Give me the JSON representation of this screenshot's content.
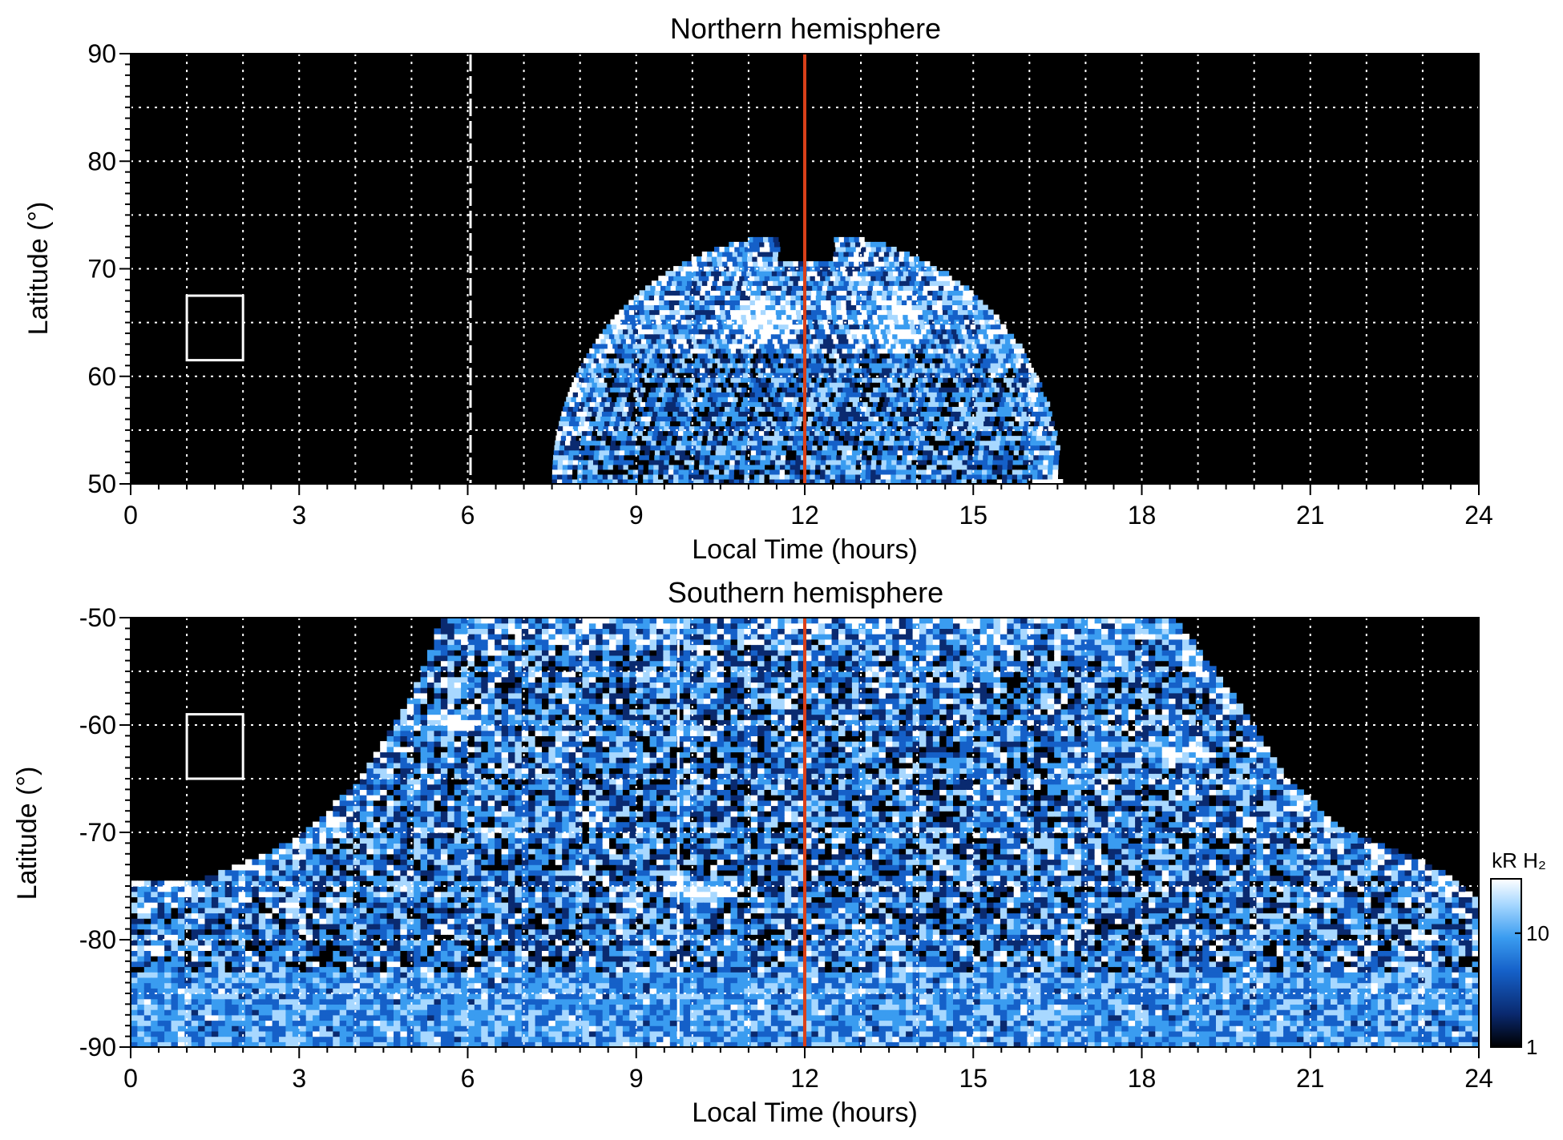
{
  "chart_data": [
    {
      "type": "heatmap",
      "title": "Northern hemisphere",
      "xlabel": "Local Time (hours)",
      "ylabel": "Latitude (°)",
      "xlim": [
        0,
        24
      ],
      "ylim": [
        50,
        90
      ],
      "xticks": [
        "0",
        "3",
        "6",
        "9",
        "12",
        "15",
        "18",
        "21",
        "24"
      ],
      "xtick_values": [
        0,
        3,
        6,
        9,
        12,
        15,
        18,
        21,
        24
      ],
      "yticks": [
        "50",
        "60",
        "70",
        "80",
        "90"
      ],
      "ytick_values": [
        50,
        60,
        70,
        80,
        90
      ],
      "grid": true,
      "grid_x_step_hours": 1,
      "grid_y_step_deg": 5,
      "background_color": "#000000",
      "emission_region": {
        "lt_range": [
          7.6,
          16.5
        ],
        "lat_range": [
          50,
          73
        ],
        "noon_cusp_lat": 70.5,
        "bright_spots": [
          {
            "lt": 11.3,
            "lat": 65,
            "intensity": "high"
          },
          {
            "lt": 13.6,
            "lat": 65,
            "intensity": "high"
          }
        ]
      },
      "marker_lines": [
        {
          "lt": 12,
          "color": "#d9401a",
          "style": "solid"
        },
        {
          "lt": 6.05,
          "color": "#ffffff",
          "style": "dashed"
        }
      ],
      "reference_box": {
        "lt": [
          1,
          2
        ],
        "lat": [
          61.5,
          67.5
        ],
        "color": "#ffffff"
      }
    },
    {
      "type": "heatmap",
      "title": "Southern hemisphere",
      "xlabel": "Local Time (hours)",
      "ylabel": "Latitude (°)",
      "xlim": [
        0,
        24
      ],
      "ylim": [
        -90,
        -50
      ],
      "xticks": [
        "0",
        "3",
        "6",
        "9",
        "12",
        "15",
        "18",
        "21",
        "24"
      ],
      "xtick_values": [
        0,
        3,
        6,
        9,
        12,
        15,
        18,
        21,
        24
      ],
      "yticks": [
        "-90",
        "-80",
        "-70",
        "-60",
        "-50"
      ],
      "ytick_values": [
        -90,
        -80,
        -70,
        -60,
        -50
      ],
      "grid": true,
      "grid_x_step_hours": 1,
      "grid_y_step_deg": 5,
      "background_color": "#000000",
      "emission_region": {
        "edge_profile": [
          {
            "lt": 0,
            "lat": -74.5
          },
          {
            "lt": 1,
            "lat": -75
          },
          {
            "lt": 2,
            "lat": -73
          },
          {
            "lt": 3,
            "lat": -70.5
          },
          {
            "lt": 4,
            "lat": -65.5
          },
          {
            "lt": 5,
            "lat": -57
          },
          {
            "lt": 5.5,
            "lat": -50
          },
          {
            "lt": 18.5,
            "lat": -50
          },
          {
            "lt": 19.5,
            "lat": -57
          },
          {
            "lt": 20.5,
            "lat": -65
          },
          {
            "lt": 21.5,
            "lat": -70
          },
          {
            "lt": 23,
            "lat": -73
          },
          {
            "lt": 24,
            "lat": -76.5
          }
        ],
        "bright_features": [
          {
            "lt": 10,
            "lat": -75.5,
            "intensity": "high"
          },
          {
            "lt": 5.8,
            "lat": -60,
            "intensity": "high"
          },
          {
            "lt": 18.6,
            "lat": -63,
            "intensity": "high"
          }
        ]
      },
      "marker_lines": [
        {
          "lt": 12,
          "color": "#d9401a",
          "style": "solid"
        },
        {
          "lt": 9.75,
          "color": "#ffffff",
          "style": "dashed"
        }
      ],
      "reference_box": {
        "lt": [
          1,
          2
        ],
        "lat": [
          -65,
          -59
        ],
        "color": "#ffffff"
      }
    }
  ],
  "colorbar": {
    "label": "kR H₂",
    "ticks": [
      "1",
      "10"
    ],
    "tick_values": [
      1,
      10
    ],
    "range": [
      1,
      30
    ],
    "scale": "log",
    "colors": [
      "#000000",
      "#0a2a70",
      "#1560c8",
      "#3a9cf0",
      "#a8d8ff",
      "#ffffff"
    ]
  },
  "colors": {
    "noon_line": "#d9401a",
    "grid": "#ffffff",
    "plot_background": "#000000"
  }
}
